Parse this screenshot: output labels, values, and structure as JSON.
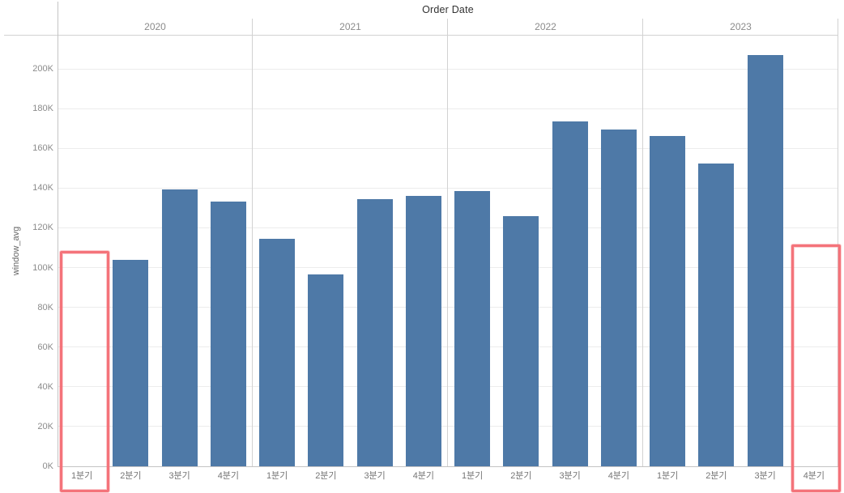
{
  "title": "Order Date",
  "y_axis": {
    "label": "window_avg",
    "tick_labels": [
      "0K",
      "20K",
      "40K",
      "60K",
      "80K",
      "100K",
      "120K",
      "140K",
      "160K",
      "180K",
      "200K"
    ]
  },
  "colors": {
    "bar": "#4e79a7",
    "highlight_border": "#f4737a",
    "gridline": "#ececec",
    "separator": "#d2d2d2",
    "axis_line": "#c4c4c4",
    "year_text": "#8b8b8b",
    "tick_text": "#8b8b8b",
    "quarter_text": "#757575",
    "title_text": "#323232"
  },
  "chart_data": {
    "type": "bar",
    "title": "Order Date",
    "ylabel": "window_avg",
    "unit": "thousands",
    "ylim": [
      0,
      200
    ],
    "tick_step_k": 20,
    "grid": true,
    "quarter_labels": [
      "1분기",
      "2분기",
      "3분기",
      "4분기"
    ],
    "series": [
      {
        "year": "2020",
        "values_k": [
          null,
          104,
          139.5,
          133
        ]
      },
      {
        "year": "2021",
        "values_k": [
          114.5,
          96.5,
          134.5,
          136
        ]
      },
      {
        "year": "2022",
        "values_k": [
          138.5,
          126,
          173.5,
          169.5
        ]
      },
      {
        "year": "2023",
        "values_k": [
          166,
          152.5,
          207,
          null
        ]
      }
    ],
    "highlighted_cells": [
      {
        "year": "2020",
        "quarter": "1분기",
        "note": "empty quarter highlighted with red box"
      },
      {
        "year": "2023",
        "quarter": "4분기",
        "note": "empty quarter highlighted with red box"
      }
    ]
  }
}
